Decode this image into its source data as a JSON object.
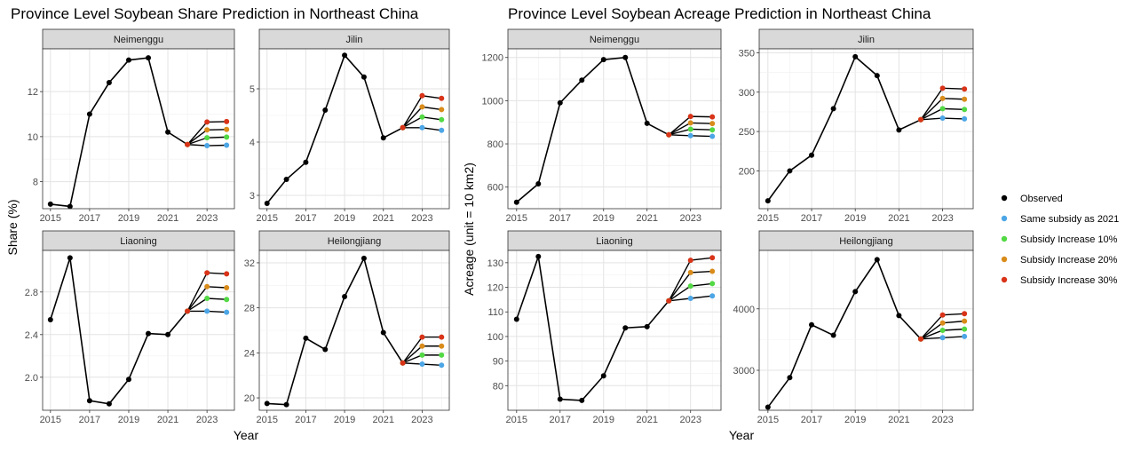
{
  "legend": {
    "items": [
      {
        "label": "Observed",
        "color": "#000000"
      },
      {
        "label": "Same subsidy as 2021",
        "color": "#4CA6E6"
      },
      {
        "label": "Subsidy Increase 10%",
        "color": "#52D944"
      },
      {
        "label": "Subsidy Increase 20%",
        "color": "#D98C1A"
      },
      {
        "label": "Subsidy Increase 30%",
        "color": "#D93318"
      }
    ]
  },
  "chart_data": [
    {
      "type": "line",
      "title": "Province Level Soybean Share Prediction in Northeast China",
      "xlabel": "Year",
      "ylabel": "Share (%)",
      "x_ticks": [
        "2015",
        "2017",
        "2019",
        "2021",
        "2023"
      ],
      "grid": true,
      "legend_position": "right",
      "panels": [
        {
          "name": "Neimenggu",
          "ylim": [
            6.8,
            13.9
          ],
          "y_ticks": [
            "8",
            "10",
            "12"
          ],
          "observed": {
            "x": [
              2015,
              2016,
              2017,
              2018,
              2019,
              2020,
              2021,
              2022
            ],
            "y": [
              7.0,
              6.9,
              11.0,
              12.4,
              13.4,
              13.5,
              10.2,
              9.65
            ]
          },
          "scenarios": [
            {
              "name": "Same subsidy as 2021",
              "x": [
                2022,
                2023,
                2024
              ],
              "y": [
                9.65,
                9.6,
                9.62
              ]
            },
            {
              "name": "Subsidy Increase 10%",
              "x": [
                2022,
                2023,
                2024
              ],
              "y": [
                9.65,
                9.95,
                9.98
              ]
            },
            {
              "name": "Subsidy Increase 20%",
              "x": [
                2022,
                2023,
                2024
              ],
              "y": [
                9.65,
                10.3,
                10.32
              ]
            },
            {
              "name": "Subsidy Increase 30%",
              "x": [
                2022,
                2023,
                2024
              ],
              "y": [
                9.65,
                10.65,
                10.67
              ]
            }
          ]
        },
        {
          "name": "Jilin",
          "ylim": [
            2.75,
            5.75
          ],
          "y_ticks": [
            "3",
            "4",
            "5"
          ],
          "observed": {
            "x": [
              2015,
              2016,
              2017,
              2018,
              2019,
              2020,
              2021,
              2022
            ],
            "y": [
              2.85,
              3.3,
              3.62,
              4.6,
              5.63,
              5.22,
              4.08,
              4.27
            ]
          },
          "scenarios": [
            {
              "name": "Same subsidy as 2021",
              "x": [
                2022,
                2023,
                2024
              ],
              "y": [
                4.27,
                4.27,
                4.22
              ]
            },
            {
              "name": "Subsidy Increase 10%",
              "x": [
                2022,
                2023,
                2024
              ],
              "y": [
                4.27,
                4.47,
                4.42
              ]
            },
            {
              "name": "Subsidy Increase 20%",
              "x": [
                2022,
                2023,
                2024
              ],
              "y": [
                4.27,
                4.66,
                4.61
              ]
            },
            {
              "name": "Subsidy Increase 30%",
              "x": [
                2022,
                2023,
                2024
              ],
              "y": [
                4.27,
                4.87,
                4.82
              ]
            }
          ]
        },
        {
          "name": "Liaoning",
          "ylim": [
            1.69,
            3.19
          ],
          "y_ticks": [
            "2.0",
            "2.4",
            "2.8"
          ],
          "observed": {
            "x": [
              2015,
              2016,
              2017,
              2018,
              2019,
              2020,
              2021,
              2022
            ],
            "y": [
              2.54,
              3.12,
              1.78,
              1.75,
              1.98,
              2.41,
              2.4,
              2.62
            ]
          },
          "scenarios": [
            {
              "name": "Same subsidy as 2021",
              "x": [
                2022,
                2023,
                2024
              ],
              "y": [
                2.62,
                2.62,
                2.61
              ]
            },
            {
              "name": "Subsidy Increase 10%",
              "x": [
                2022,
                2023,
                2024
              ],
              "y": [
                2.62,
                2.74,
                2.73
              ]
            },
            {
              "name": "Subsidy Increase 20%",
              "x": [
                2022,
                2023,
                2024
              ],
              "y": [
                2.62,
                2.85,
                2.84
              ]
            },
            {
              "name": "Subsidy Increase 30%",
              "x": [
                2022,
                2023,
                2024
              ],
              "y": [
                2.62,
                2.98,
                2.97
              ]
            }
          ]
        },
        {
          "name": "Heilongjiang",
          "ylim": [
            18.9,
            33.1
          ],
          "y_ticks": [
            "20",
            "24",
            "28",
            "32"
          ],
          "observed": {
            "x": [
              2015,
              2016,
              2017,
              2018,
              2019,
              2020,
              2021,
              2022
            ],
            "y": [
              19.5,
              19.4,
              25.3,
              24.3,
              29.0,
              32.4,
              25.8,
              23.1
            ]
          },
          "scenarios": [
            {
              "name": "Same subsidy as 2021",
              "x": [
                2022,
                2023,
                2024
              ],
              "y": [
                23.1,
                23.0,
                22.9
              ]
            },
            {
              "name": "Subsidy Increase 10%",
              "x": [
                2022,
                2023,
                2024
              ],
              "y": [
                23.1,
                23.8,
                23.8
              ]
            },
            {
              "name": "Subsidy Increase 20%",
              "x": [
                2022,
                2023,
                2024
              ],
              "y": [
                23.1,
                24.6,
                24.6
              ]
            },
            {
              "name": "Subsidy Increase 30%",
              "x": [
                2022,
                2023,
                2024
              ],
              "y": [
                23.1,
                25.4,
                25.4
              ]
            }
          ]
        }
      ]
    },
    {
      "type": "line",
      "title": "Province Level Soybean Acreage Prediction in Northeast China",
      "xlabel": "Year",
      "ylabel": "Acreage (unit = 10 km2)",
      "x_ticks": [
        "2015",
        "2017",
        "2019",
        "2021",
        "2023"
      ],
      "grid": true,
      "legend_position": "right",
      "panels": [
        {
          "name": "Neimenggu",
          "ylim": [
            500,
            1240
          ],
          "y_ticks": [
            "600",
            "800",
            "1000",
            "1200"
          ],
          "observed": {
            "x": [
              2015,
              2016,
              2017,
              2018,
              2019,
              2020,
              2021,
              2022
            ],
            "y": [
              530,
              615,
              990,
              1095,
              1190,
              1200,
              895,
              842
            ]
          },
          "scenarios": [
            {
              "name": "Same subsidy as 2021",
              "x": [
                2022,
                2023,
                2024
              ],
              "y": [
                842,
                838,
                835
              ]
            },
            {
              "name": "Subsidy Increase 10%",
              "x": [
                2022,
                2023,
                2024
              ],
              "y": [
                842,
                868,
                865
              ]
            },
            {
              "name": "Subsidy Increase 20%",
              "x": [
                2022,
                2023,
                2024
              ],
              "y": [
                842,
                897,
                894
              ]
            },
            {
              "name": "Subsidy Increase 30%",
              "x": [
                2022,
                2023,
                2024
              ],
              "y": [
                842,
                927,
                925
              ]
            }
          ]
        },
        {
          "name": "Jilin",
          "ylim": [
            152,
            355
          ],
          "y_ticks": [
            "200",
            "250",
            "300",
            "350"
          ],
          "observed": {
            "x": [
              2015,
              2016,
              2017,
              2018,
              2019,
              2020,
              2021,
              2022
            ],
            "y": [
              162,
              200,
              220,
              279,
              345,
              321,
              252,
              265
            ]
          },
          "scenarios": [
            {
              "name": "Same subsidy as 2021",
              "x": [
                2022,
                2023,
                2024
              ],
              "y": [
                265,
                267,
                266
              ]
            },
            {
              "name": "Subsidy Increase 10%",
              "x": [
                2022,
                2023,
                2024
              ],
              "y": [
                265,
                279,
                278
              ]
            },
            {
              "name": "Subsidy Increase 20%",
              "x": [
                2022,
                2023,
                2024
              ],
              "y": [
                265,
                292,
                291
              ]
            },
            {
              "name": "Subsidy Increase 30%",
              "x": [
                2022,
                2023,
                2024
              ],
              "y": [
                265,
                305,
                304
              ]
            }
          ]
        },
        {
          "name": "Liaoning",
          "ylim": [
            70,
            135
          ],
          "y_ticks": [
            "80",
            "90",
            "100",
            "110",
            "120",
            "130"
          ],
          "observed": {
            "x": [
              2015,
              2016,
              2017,
              2018,
              2019,
              2020,
              2021,
              2022
            ],
            "y": [
              107,
              132.5,
              74.5,
              74,
              84,
              103.5,
              104,
              114.5
            ]
          },
          "scenarios": [
            {
              "name": "Same subsidy as 2021",
              "x": [
                2022,
                2023,
                2024
              ],
              "y": [
                114.5,
                115.5,
                116.5
              ]
            },
            {
              "name": "Subsidy Increase 10%",
              "x": [
                2022,
                2023,
                2024
              ],
              "y": [
                114.5,
                120.5,
                121.5
              ]
            },
            {
              "name": "Subsidy Increase 20%",
              "x": [
                2022,
                2023,
                2024
              ],
              "y": [
                114.5,
                126,
                126.5
              ]
            },
            {
              "name": "Subsidy Increase 30%",
              "x": [
                2022,
                2023,
                2024
              ],
              "y": [
                114.5,
                131,
                132
              ]
            }
          ]
        },
        {
          "name": "Heilongjiang",
          "ylim": [
            2350,
            4950
          ],
          "y_ticks": [
            "3000",
            "4000"
          ],
          "observed": {
            "x": [
              2015,
              2016,
              2017,
              2018,
              2019,
              2020,
              2021,
              2022
            ],
            "y": [
              2400,
              2880,
              3740,
              3570,
              4280,
              4800,
              3890,
              3510
            ]
          },
          "scenarios": [
            {
              "name": "Same subsidy as 2021",
              "x": [
                2022,
                2023,
                2024
              ],
              "y": [
                3510,
                3530,
                3550
              ]
            },
            {
              "name": "Subsidy Increase 10%",
              "x": [
                2022,
                2023,
                2024
              ],
              "y": [
                3510,
                3650,
                3670
              ]
            },
            {
              "name": "Subsidy Increase 20%",
              "x": [
                2022,
                2023,
                2024
              ],
              "y": [
                3510,
                3770,
                3800
              ]
            },
            {
              "name": "Subsidy Increase 30%",
              "x": [
                2022,
                2023,
                2024
              ],
              "y": [
                3510,
                3900,
                3920
              ]
            }
          ]
        }
      ]
    }
  ]
}
